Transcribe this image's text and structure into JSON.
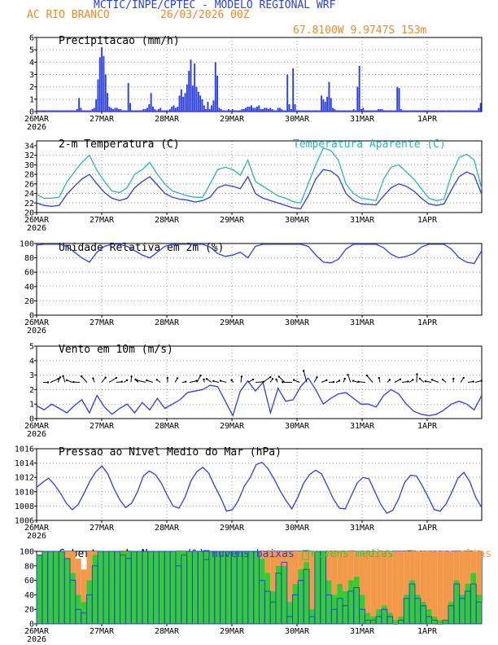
{
  "header": {
    "title": "MCTIC/INPE/CPTEC - MODELO REGIONAL WRF",
    "station": "AC RIO BRANCO",
    "datetime": "26/03/2026 00Z",
    "coords": "67.8100W 9.9747S 153m"
  },
  "colors": {
    "blue": "#2a3fe6",
    "cyan": "#2ab5b5",
    "green": "#33cc33",
    "orange": "#f39a4a",
    "header_orange": "#ee8a2a"
  },
  "x_axis": {
    "ticks": [
      "26MAR",
      "27MAR",
      "28MAR",
      "29MAR",
      "30MAR",
      "31MAR",
      "1APR"
    ],
    "year": "2026"
  },
  "chart_data": [
    {
      "id": "precip",
      "type": "bar",
      "title": "Precipitacao (mm/h)",
      "ylim": [
        0,
        6
      ],
      "yticks": [
        0,
        1,
        2,
        3,
        4,
        5,
        6
      ],
      "series": [
        {
          "name": "precip",
          "color": "#2a3fe6",
          "values": [
            0.1,
            0.1,
            0.1,
            0.1,
            0.1,
            0.1,
            0.1,
            0.1,
            0.1,
            0.1,
            0.1,
            0.1,
            0.1,
            0.1,
            0.1,
            0.1,
            0.1,
            0.1,
            0.1,
            0.1,
            0.1,
            0.2,
            1.1,
            0.3,
            0.1,
            0.1,
            0.1,
            0.1,
            0.1,
            0.2,
            0.3,
            1.0,
            2.6,
            4.4,
            5.2,
            4.5,
            3.0,
            1.5,
            0.4,
            0.3,
            0.2,
            0.3,
            0.3,
            0.2,
            0.2,
            0.1,
            0.1,
            0.1,
            2.3,
            0.7,
            0.1,
            0.1,
            0.1,
            0.1,
            0.1,
            0.1,
            0.2,
            0.2,
            0.3,
            0.6,
            1.5,
            0.4,
            0.2,
            0.1,
            0.2,
            0.3,
            0.1,
            0.1,
            0.1,
            0.1,
            0.2,
            0.4,
            0.5,
            0.3,
            0.4,
            1.3,
            1.8,
            1.2,
            1.5,
            2.2,
            3.3,
            4.2,
            2.1,
            3.9,
            2.0,
            1.6,
            1.3,
            1.0,
            0.5,
            0.2,
            0.8,
            0.2,
            0.5,
            0.9,
            4.0,
            2.9,
            0.3,
            0.2,
            0.1,
            0.1,
            0.1,
            0.2,
            0.1,
            0.2,
            0.1,
            0.1,
            0.1,
            0.1,
            0.2,
            0.2,
            0.3,
            0.4,
            0.4,
            0.5,
            0.3,
            0.3,
            0.4,
            0.5,
            0.2,
            0.2,
            0.3,
            0.3,
            0.2,
            0.3,
            0.2,
            0.1,
            0.1,
            0.3,
            0.3,
            0.2,
            0.1,
            0.1,
            3.0,
            0.6,
            0.2,
            3.5,
            0.6,
            0.1,
            0.1,
            0.1,
            0.1,
            0.1,
            0.1,
            0.1,
            0.1,
            0.1,
            0.1,
            0.1,
            0.1,
            0.1,
            1.3,
            1.0,
            0.8,
            1.2,
            2.4,
            1.1,
            0.3,
            0.2,
            0.1,
            0.1,
            0.1,
            0.1,
            0.1,
            0.1,
            0.1,
            0.1,
            0.1,
            0.2,
            0.1,
            2.0,
            3.7,
            0.2,
            0.3,
            0.1,
            0.1,
            0.1,
            0.1,
            0.1,
            0.1,
            0.1,
            0.2,
            0.2,
            0.2,
            0.1,
            0.1,
            0.1,
            0.1,
            0.1,
            0.1,
            0.1,
            2.0,
            1.9,
            0.2,
            0.1,
            0.1,
            0.1,
            0.1,
            0.1,
            0.1,
            0.1,
            0.1,
            0.1,
            0.1,
            0.1,
            0.1,
            0.1,
            0.1,
            0.1,
            0.1,
            0.1,
            0.1,
            0.1,
            0.1,
            0.1,
            0.1,
            0.1,
            0.1,
            0.1,
            0.1,
            0.1,
            0.1,
            0.1,
            0.1,
            0.1,
            0.1,
            0.1,
            0.1,
            0.1,
            0.1,
            0.1,
            0.1,
            0.1,
            0.1,
            0.3,
            0.7
          ]
        }
      ]
    },
    {
      "id": "temp",
      "type": "line",
      "title": "2-m Temperatura (C)",
      "title2": "Temperatura Aparente (C)",
      "ylim": [
        20,
        35
      ],
      "yticks": [
        20,
        22,
        24,
        26,
        28,
        30,
        32,
        34
      ],
      "series": [
        {
          "name": "Temperatura Aparente (C)",
          "color": "#2ab5b5",
          "values": [
            23.8,
            23.0,
            23.0,
            23.2,
            26.4,
            28.5,
            30.5,
            32.0,
            28.8,
            26.5,
            24.5,
            24.2,
            25.2,
            28.0,
            29.0,
            30.5,
            28.0,
            26.0,
            24.5,
            24.0,
            23.5,
            23.2,
            23.2,
            26.0,
            29.0,
            29.5,
            29.0,
            27.8,
            31.0,
            26.5,
            25.5,
            24.5,
            23.5,
            23.0,
            22.3,
            22.0,
            26.0,
            30.0,
            33.5,
            33.0,
            31.0,
            26.0,
            24.0,
            23.0,
            22.8,
            22.5,
            27.0,
            29.5,
            30.0,
            28.5,
            27.0,
            25.0,
            23.0,
            22.5,
            22.8,
            28.0,
            31.5,
            32.2,
            31.0,
            25.0
          ]
        },
        {
          "name": "2-m Temperatura (C)",
          "color": "#2a3fe6",
          "values": [
            22.0,
            21.5,
            21.3,
            21.5,
            23.8,
            25.5,
            27.0,
            28.0,
            26.0,
            24.2,
            23.0,
            22.5,
            23.0,
            25.2,
            26.5,
            27.5,
            25.8,
            24.0,
            23.2,
            22.8,
            22.6,
            22.2,
            22.5,
            23.2,
            25.2,
            25.8,
            25.5,
            25.0,
            27.5,
            24.0,
            23.0,
            22.5,
            22.0,
            21.5,
            21.0,
            20.8,
            23.5,
            27.0,
            29.0,
            28.7,
            27.5,
            24.0,
            22.5,
            21.8,
            21.7,
            21.6,
            23.5,
            25.2,
            26.0,
            25.5,
            24.5,
            23.0,
            21.8,
            21.5,
            21.8,
            24.8,
            27.5,
            28.5,
            27.8,
            23.8
          ]
        }
      ]
    },
    {
      "id": "rh",
      "type": "line",
      "title": "Umidade Relativa em 2m (%)",
      "ylim": [
        0,
        100
      ],
      "yticks": [
        0,
        20,
        40,
        60,
        80,
        100
      ],
      "series": [
        {
          "name": "rh",
          "color": "#2a3fe6",
          "values": [
            98,
            99,
            99,
            99,
            96,
            88,
            80,
            74,
            88,
            96,
            99,
            99,
            96,
            90,
            84,
            80,
            88,
            96,
            99,
            99,
            99,
            99,
            99,
            95,
            86,
            82,
            84,
            88,
            80,
            96,
            99,
            99,
            99,
            99,
            99,
            99,
            96,
            84,
            74,
            73,
            78,
            92,
            99,
            99,
            99,
            99,
            94,
            85,
            80,
            82,
            86,
            95,
            99,
            99,
            99,
            92,
            80,
            74,
            72,
            90
          ]
        }
      ]
    },
    {
      "id": "wind",
      "type": "line",
      "title": "Vento em 10m (m/s)",
      "ylim": [
        0,
        5
      ],
      "yticks": [
        0,
        1,
        2,
        3,
        4,
        5
      ],
      "series": [
        {
          "name": "wind speed",
          "color": "#2a3fe6",
          "values": [
            0.9,
            0.6,
            1.0,
            0.7,
            0.4,
            0.9,
            1.3,
            0.4,
            1.6,
            0.8,
            0.3,
            0.7,
            1.0,
            0.4,
            1.1,
            0.6,
            1.4,
            0.7,
            1.0,
            1.3,
            1.8,
            1.9,
            2.0,
            2.3,
            2.2,
            1.2,
            0.2,
            1.9,
            2.6,
            1.9,
            2.5,
            0.4,
            2.1,
            1.2,
            1.3,
            2.2,
            2.8,
            2.0,
            1.0,
            1.4,
            1.7,
            1.8,
            1.4,
            1.0,
            1.0,
            0.8,
            1.6,
            2.0,
            1.7,
            1.0,
            0.5,
            0.3,
            0.2,
            0.3,
            0.6,
            1.0,
            1.2,
            1.0,
            0.6,
            1.6
          ]
        }
      ],
      "vectors": [
        2.0,
        3.5,
        3.2,
        2.2,
        2.5,
        2.4,
        2.8,
        2.6,
        3.2,
        3.0,
        2.2,
        2.0,
        2.0,
        2.2,
        3.4,
        2.5,
        2.2,
        2.8,
        1.8,
        1.6,
        2.8,
        2.6,
        2.0,
        2.8,
        2.2,
        2.4,
        1.8,
        2.0,
        2.6,
        3.0,
        3.2,
        2.4,
        2.0,
        2.8,
        3.4,
        2.6,
        3.6,
        3.2,
        2.4,
        2.0,
        1.8,
        2.4,
        2.6,
        2.2,
        2.6,
        3.0,
        2.8,
        2.0,
        2.4,
        2.4,
        2.2,
        2.6,
        2.8,
        2.4,
        2.6,
        2.2,
        2.4,
        2.0,
        2.2,
        2.6
      ]
    },
    {
      "id": "pressure",
      "type": "line",
      "title": "Pressao ao Nivel Medio do Mar (hPa)",
      "ylim": [
        1006,
        1016
      ],
      "yticks": [
        1006,
        1008,
        1010,
        1012,
        1014,
        1016
      ],
      "series": [
        {
          "name": "pressure",
          "color": "#2a3fe6",
          "values": [
            1010.6,
            1011.3,
            1011.9,
            1011.0,
            1009.8,
            1008.4,
            1007.5,
            1008.2,
            1009.8,
            1011.5,
            1012.8,
            1013.6,
            1012.5,
            1010.5,
            1008.9,
            1007.8,
            1008.4,
            1010.0,
            1012.2,
            1012.9,
            1012.4,
            1011.2,
            1009.5,
            1008.0,
            1007.7,
            1009.2,
            1011.5,
            1012.8,
            1013.4,
            1012.6,
            1010.8,
            1009.2,
            1007.3,
            1007.5,
            1008.8,
            1010.8,
            1012.0,
            1013.8,
            1014.1,
            1013.2,
            1011.8,
            1010.2,
            1008.8,
            1007.6,
            1009.2,
            1011.2,
            1012.4,
            1013.0,
            1012.5,
            1010.8,
            1009.0,
            1007.7,
            1007.6,
            1009.4,
            1011.2,
            1012.0,
            1011.8,
            1010.0,
            1008.2,
            1007.0,
            1007.4,
            1009.0,
            1011.3,
            1012.3,
            1012.2,
            1010.8,
            1009.2,
            1007.5,
            1007.3,
            1008.3,
            1010.0,
            1011.9,
            1012.7,
            1011.4,
            1009.2,
            1007.8
          ]
        }
      ]
    },
    {
      "id": "clouds",
      "type": "bar",
      "title": "Cobertura de Nuvens (%)",
      "legend": [
        "nuvens baixas",
        "nuvens medias",
        "nuvens altas"
      ],
      "ylim": [
        0,
        100
      ],
      "yticks": [
        0,
        20,
        40,
        60,
        80,
        100
      ],
      "series": [
        {
          "name": "nuvens altas",
          "color": "#f39a4a",
          "values": [
            60,
            90,
            100,
            100,
            100,
            100,
            100,
            90,
            75,
            100,
            100,
            100,
            100,
            100,
            100,
            100,
            100,
            100,
            100,
            100,
            100,
            100,
            100,
            100,
            100,
            100,
            100,
            100,
            100,
            100,
            85,
            100,
            100,
            100,
            100,
            100,
            100,
            100,
            100,
            100,
            100,
            100,
            100,
            100,
            100,
            100,
            100,
            100,
            100,
            100,
            100,
            100,
            100,
            100,
            100,
            100,
            100,
            100,
            100,
            100,
            100,
            100,
            100,
            100,
            100,
            100,
            100,
            100,
            100,
            100,
            100,
            100,
            100,
            100,
            100,
            100,
            100,
            100,
            100,
            100
          ]
        },
        {
          "name": "nuvens medias",
          "color": "#33cc33",
          "values": [
            95,
            100,
            100,
            100,
            100,
            90,
            70,
            40,
            30,
            60,
            95,
            100,
            100,
            100,
            100,
            100,
            100,
            100,
            100,
            100,
            100,
            100,
            100,
            100,
            100,
            100,
            100,
            100,
            100,
            100,
            100,
            100,
            100,
            100,
            100,
            100,
            100,
            100,
            100,
            100,
            90,
            70,
            45,
            80,
            80,
            30,
            55,
            75,
            85,
            20,
            100,
            100,
            60,
            40,
            55,
            45,
            60,
            65,
            40,
            15,
            10,
            20,
            25,
            15,
            5,
            10,
            40,
            60,
            40,
            30,
            20,
            10,
            5,
            5,
            30,
            60,
            40,
            55,
            70,
            40
          ]
        },
        {
          "name": "nuvens baixas",
          "color": "#2a3fe6",
          "values": [
            95,
            100,
            100,
            100,
            100,
            90,
            60,
            20,
            15,
            40,
            80,
            100,
            100,
            100,
            100,
            95,
            90,
            100,
            100,
            100,
            100,
            100,
            100,
            100,
            100,
            80,
            95,
            100,
            100,
            100,
            100,
            100,
            100,
            100,
            100,
            100,
            100,
            100,
            100,
            100,
            60,
            45,
            30,
            70,
            85,
            10,
            40,
            60,
            75,
            10,
            100,
            100,
            40,
            20,
            35,
            25,
            45,
            50,
            20,
            5,
            5,
            10,
            20,
            10,
            0,
            5,
            35,
            55,
            35,
            25,
            10,
            5,
            0,
            5,
            25,
            55,
            35,
            45,
            55,
            30
          ]
        }
      ]
    }
  ]
}
